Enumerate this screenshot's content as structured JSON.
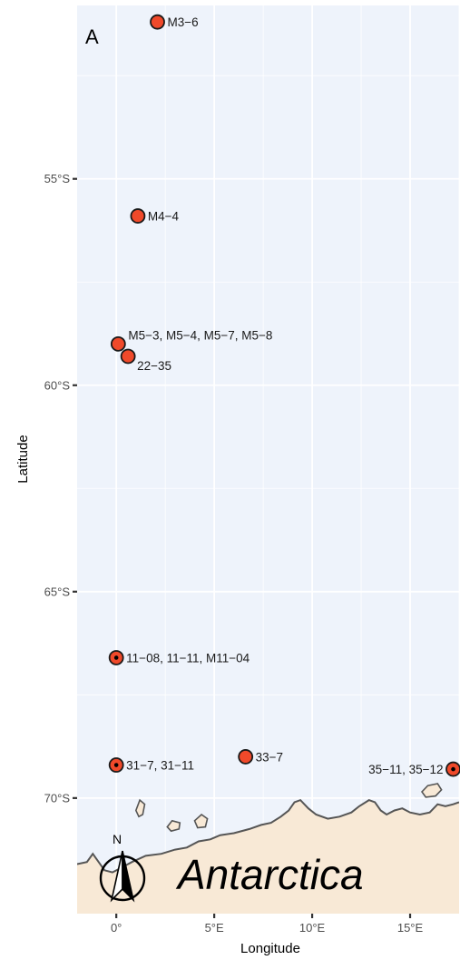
{
  "panel_letter": "A",
  "axes": {
    "x_title": "Longitude",
    "y_title": "Latitude",
    "x_ticks": [
      {
        "value": 0,
        "label": "0°"
      },
      {
        "value": 5,
        "label": "5°E"
      },
      {
        "value": 10,
        "label": "10°E"
      },
      {
        "value": 15,
        "label": "15°E"
      }
    ],
    "y_ticks": [
      {
        "value": -55,
        "label": "55°S"
      },
      {
        "value": -60,
        "label": "60°S"
      },
      {
        "value": -65,
        "label": "65°S"
      },
      {
        "value": -70,
        "label": "70°S"
      }
    ],
    "xlim": [
      -2,
      17.5
    ],
    "ylim": [
      -72.8,
      -50.8
    ]
  },
  "colors": {
    "panel_bg": "#eef3fb",
    "grid": "#ffffff",
    "land": "#f8e9d6",
    "coast": "#555555",
    "marker_fill": "#f0492a",
    "marker_stroke": "#1a1a1a",
    "marker_dot": "#000000"
  },
  "chart_data": {
    "type": "scatter",
    "sites": [
      {
        "lon": 2.1,
        "lat": -51.2,
        "label": "M3−6",
        "dot": false,
        "label_side": "right"
      },
      {
        "lon": 1.1,
        "lat": -55.9,
        "label": "M4−4",
        "dot": false,
        "label_side": "right"
      },
      {
        "lon": 0.1,
        "lat": -59.0,
        "label": "M5−3, M5−4, M5−7, M5−8",
        "dot": false,
        "label_side": "upper-right"
      },
      {
        "lon": 0.6,
        "lat": -59.3,
        "label": "22−35",
        "dot": false,
        "label_side": "lower-right"
      },
      {
        "lon": 0.0,
        "lat": -66.6,
        "label": "11−08, 11−11, M11−04",
        "dot": true,
        "label_side": "right"
      },
      {
        "lon": 0.0,
        "lat": -69.2,
        "label": "31−7, 31−11",
        "dot": true,
        "label_side": "right"
      },
      {
        "lon": 6.6,
        "lat": -69.0,
        "label": "33−7",
        "dot": false,
        "label_side": "right"
      },
      {
        "lon": 17.2,
        "lat": -69.3,
        "label": "35−11, 35−12",
        "dot": true,
        "label_side": "left"
      }
    ]
  },
  "map": {
    "land_label": "Antarctica",
    "north_label": "N",
    "islands": [
      [
        [
          1.0,
          -70.3
        ],
        [
          1.2,
          -70.05
        ],
        [
          1.45,
          -70.15
        ],
        [
          1.35,
          -70.4
        ],
        [
          1.15,
          -70.45
        ]
      ],
      [
        [
          2.6,
          -70.7
        ],
        [
          2.85,
          -70.55
        ],
        [
          3.25,
          -70.6
        ],
        [
          3.2,
          -70.75
        ],
        [
          2.8,
          -70.8
        ]
      ],
      [
        [
          4.0,
          -70.55
        ],
        [
          4.35,
          -70.4
        ],
        [
          4.65,
          -70.5
        ],
        [
          4.55,
          -70.7
        ],
        [
          4.15,
          -70.72
        ]
      ],
      [
        [
          15.6,
          -69.85
        ],
        [
          15.9,
          -69.7
        ],
        [
          16.4,
          -69.65
        ],
        [
          16.6,
          -69.8
        ],
        [
          16.3,
          -69.95
        ],
        [
          15.8,
          -69.98
        ]
      ]
    ],
    "coastline": [
      [
        -2.0,
        -71.6
      ],
      [
        -1.5,
        -71.55
      ],
      [
        -1.2,
        -71.35
      ],
      [
        -0.9,
        -71.55
      ],
      [
        -0.6,
        -71.75
      ],
      [
        -0.2,
        -71.8
      ],
      [
        0.2,
        -71.7
      ],
      [
        0.8,
        -71.55
      ],
      [
        1.5,
        -71.4
      ],
      [
        2.3,
        -71.35
      ],
      [
        3.0,
        -71.25
      ],
      [
        3.6,
        -71.2
      ],
      [
        4.2,
        -71.05
      ],
      [
        4.8,
        -71.0
      ],
      [
        5.3,
        -70.9
      ],
      [
        6.0,
        -70.85
      ],
      [
        6.8,
        -70.75
      ],
      [
        7.4,
        -70.65
      ],
      [
        7.9,
        -70.6
      ],
      [
        8.4,
        -70.45
      ],
      [
        8.8,
        -70.3
      ],
      [
        9.1,
        -70.1
      ],
      [
        9.4,
        -70.05
      ],
      [
        9.8,
        -70.25
      ],
      [
        10.2,
        -70.4
      ],
      [
        10.8,
        -70.5
      ],
      [
        11.4,
        -70.45
      ],
      [
        12.0,
        -70.35
      ],
      [
        12.4,
        -70.2
      ],
      [
        12.9,
        -70.05
      ],
      [
        13.2,
        -70.1
      ],
      [
        13.5,
        -70.3
      ],
      [
        13.8,
        -70.4
      ],
      [
        14.2,
        -70.3
      ],
      [
        14.6,
        -70.25
      ],
      [
        15.0,
        -70.35
      ],
      [
        15.5,
        -70.4
      ],
      [
        16.0,
        -70.35
      ],
      [
        16.4,
        -70.15
      ],
      [
        16.8,
        -70.2
      ],
      [
        17.2,
        -70.15
      ],
      [
        17.5,
        -70.1
      ]
    ]
  }
}
